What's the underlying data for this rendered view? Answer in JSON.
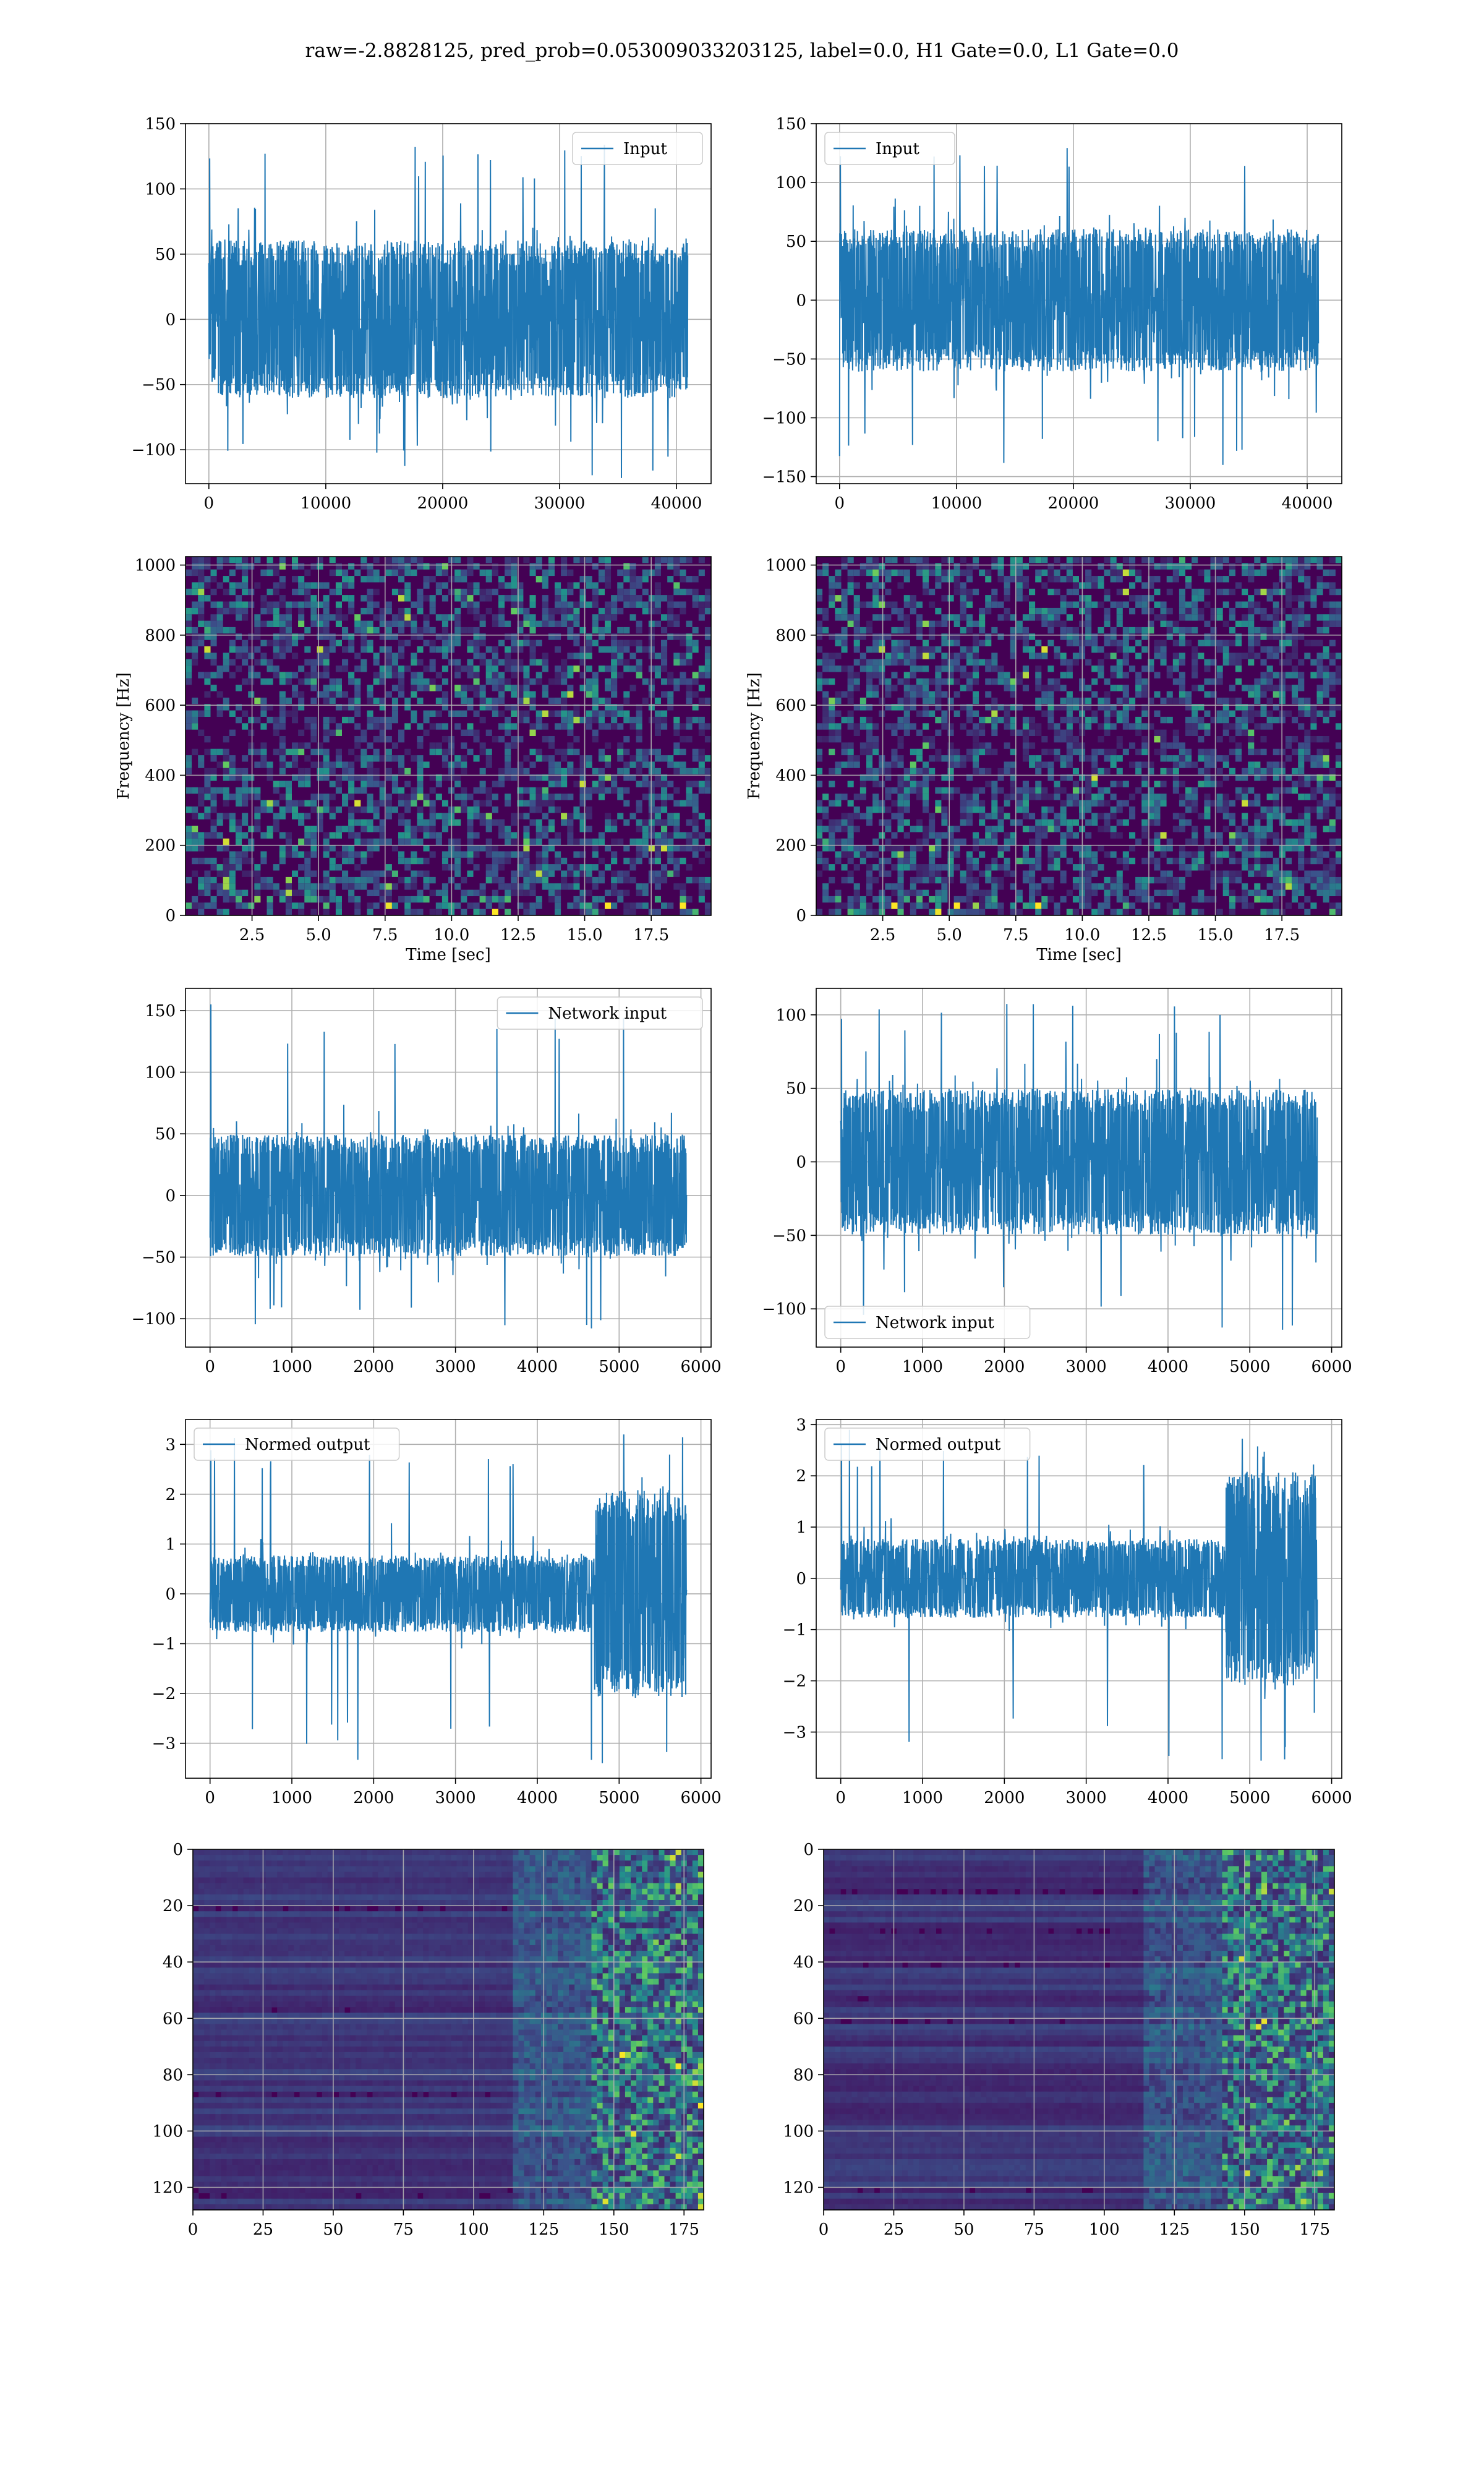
{
  "figure": {
    "title": "raw=-2.8828125, pred_prob=0.053009033203125, label=0.0, H1 Gate=0.0, L1 Gate=0.0"
  },
  "colors": {
    "line": "#1f77b4",
    "grid": "#b0b0b0",
    "viridis_low": "#440154",
    "viridis_mid": "#21918c",
    "viridis_high": "#fde725"
  },
  "chart_data": [
    {
      "id": "input-h1",
      "type": "line",
      "series": [
        {
          "name": "Input",
          "envelope": {
            "x_start": 0,
            "x_end": 40960,
            "typical_abs": 55,
            "max": 137,
            "min": -122
          }
        }
      ],
      "xticks": [
        0,
        10000,
        20000,
        30000,
        40000
      ],
      "yticks": [
        -100,
        -50,
        0,
        50,
        100,
        150
      ],
      "xlim": [
        -2000,
        42960
      ],
      "ylim": [
        -126,
        150
      ],
      "legend": "top-right",
      "grid": true
    },
    {
      "id": "input-l1",
      "type": "line",
      "series": [
        {
          "name": "Input",
          "envelope": {
            "x_start": 0,
            "x_end": 40960,
            "typical_abs": 55,
            "max": 136,
            "min": -143
          }
        }
      ],
      "xticks": [
        0,
        10000,
        20000,
        30000,
        40000
      ],
      "yticks": [
        -150,
        -100,
        -50,
        0,
        50,
        100,
        150
      ],
      "xlim": [
        -2000,
        42960
      ],
      "ylim": [
        -156,
        150
      ],
      "legend": "top-left",
      "grid": true
    },
    {
      "id": "spectrogram-h1",
      "type": "heatmap",
      "xlabel": "Time [sec]",
      "ylabel": "Frequency [Hz]",
      "xticks": [
        "2.5",
        "5.0",
        "7.5",
        "10.0",
        "12.5",
        "15.0",
        "17.5"
      ],
      "yticks": [
        "0",
        "200",
        "400",
        "600",
        "800",
        "1000"
      ],
      "xlim": [
        0,
        19.75
      ],
      "ylim": [
        0,
        1024
      ],
      "colormap": "viridis",
      "grid": true
    },
    {
      "id": "spectrogram-l1",
      "type": "heatmap",
      "xlabel": "Time [sec]",
      "ylabel": "Frequency [Hz]",
      "xticks": [
        "2.5",
        "5.0",
        "7.5",
        "10.0",
        "12.5",
        "15.0",
        "17.5"
      ],
      "yticks": [
        "0",
        "200",
        "400",
        "600",
        "800",
        "1000"
      ],
      "xlim": [
        0,
        19.75
      ],
      "ylim": [
        0,
        1024
      ],
      "colormap": "viridis",
      "grid": true
    },
    {
      "id": "network-input-h1",
      "type": "line",
      "series": [
        {
          "name": "Network input",
          "envelope": {
            "x_start": 0,
            "x_end": 5824,
            "typical_abs": 45,
            "max": 155,
            "min": -110
          }
        }
      ],
      "xticks": [
        0,
        1000,
        2000,
        3000,
        4000,
        5000,
        6000
      ],
      "yticks": [
        -100,
        -50,
        0,
        50,
        100,
        150
      ],
      "xlim": [
        -300,
        6124
      ],
      "ylim": [
        -123,
        168
      ],
      "legend": "top-right",
      "grid": true
    },
    {
      "id": "network-input-l1",
      "type": "line",
      "series": [
        {
          "name": "Network input",
          "envelope": {
            "x_start": 0,
            "x_end": 5824,
            "typical_abs": 45,
            "max": 108,
            "min": -115
          }
        }
      ],
      "xticks": [
        0,
        1000,
        2000,
        3000,
        4000,
        5000,
        6000
      ],
      "yticks": [
        -100,
        -50,
        0,
        50,
        100
      ],
      "xlim": [
        -300,
        6124
      ],
      "ylim": [
        -126,
        118
      ],
      "legend": "bottom-left",
      "grid": true
    },
    {
      "id": "normed-output-h1",
      "type": "line",
      "series": [
        {
          "name": "Normed output",
          "envelope": {
            "x_start": 0,
            "x_end": 5824,
            "typical_abs": 0.7,
            "burst_start": 4700,
            "burst_abs": 1.9,
            "max": 3.2,
            "min": -3.4
          }
        }
      ],
      "xticks": [
        0,
        1000,
        2000,
        3000,
        4000,
        5000,
        6000
      ],
      "yticks": [
        -3,
        -2,
        -1,
        0,
        1,
        2,
        3
      ],
      "xlim": [
        -300,
        6124
      ],
      "ylim": [
        -3.7,
        3.5
      ],
      "legend": "top-left",
      "grid": true
    },
    {
      "id": "normed-output-l1",
      "type": "line",
      "series": [
        {
          "name": "Normed output",
          "envelope": {
            "x_start": 0,
            "x_end": 5824,
            "typical_abs": 0.7,
            "burst_start": 4700,
            "burst_abs": 1.9,
            "max": 2.9,
            "min": -3.6
          }
        }
      ],
      "xticks": [
        0,
        1000,
        2000,
        3000,
        4000,
        5000,
        6000
      ],
      "yticks": [
        -3,
        -2,
        -1,
        0,
        1,
        2,
        3
      ],
      "xlim": [
        -300,
        6124
      ],
      "ylim": [
        -3.9,
        3.1
      ],
      "legend": "top-left",
      "grid": true
    },
    {
      "id": "feature-map-h1",
      "type": "heatmap",
      "xticks": [
        "0",
        "25",
        "50",
        "75",
        "100",
        "125",
        "150",
        "175"
      ],
      "yticks": [
        "0",
        "20",
        "40",
        "60",
        "80",
        "100",
        "120"
      ],
      "xlim": [
        0,
        182
      ],
      "ylim": [
        128,
        0
      ],
      "colormap": "viridis",
      "grid": true
    },
    {
      "id": "feature-map-l1",
      "type": "heatmap",
      "xticks": [
        "0",
        "25",
        "50",
        "75",
        "100",
        "125",
        "150",
        "175"
      ],
      "yticks": [
        "0",
        "20",
        "40",
        "60",
        "80",
        "100",
        "120"
      ],
      "xlim": [
        0,
        182
      ],
      "ylim": [
        128,
        0
      ],
      "colormap": "viridis",
      "grid": true
    }
  ]
}
